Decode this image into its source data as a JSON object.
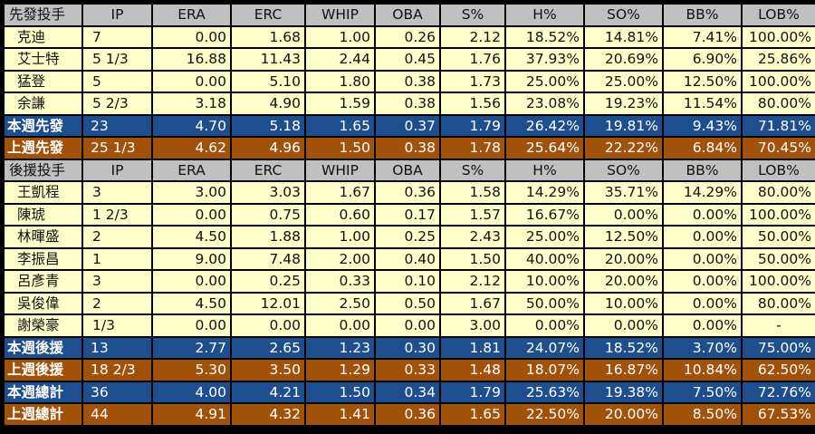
{
  "starters": {
    "header": [
      "先發投手",
      "IP",
      "ERA",
      "ERC",
      "WHIP",
      "OBA",
      "S%",
      "H%",
      "SO%",
      "BB%",
      "LOB%"
    ],
    "rows": [
      [
        "克迪",
        "7",
        "0.00",
        "1.68",
        "1.00",
        "0.26",
        "2.12",
        "18.52%",
        "14.81%",
        "7.41%",
        "100.00%"
      ],
      [
        "艾士特",
        "5 1/3",
        "16.88",
        "11.43",
        "2.44",
        "0.45",
        "1.76",
        "37.93%",
        "20.69%",
        "6.90%",
        "25.86%"
      ],
      [
        "猛登",
        "5",
        "0.00",
        "5.10",
        "1.80",
        "0.38",
        "1.73",
        "25.00%",
        "25.00%",
        "12.50%",
        "100.00%"
      ],
      [
        "余謙",
        "5 2/3",
        "3.18",
        "4.90",
        "1.59",
        "0.38",
        "1.56",
        "23.08%",
        "19.23%",
        "11.54%",
        "80.00%"
      ]
    ],
    "this_week": [
      "本週先發",
      "23",
      "4.70",
      "5.18",
      "1.65",
      "0.37",
      "1.79",
      "26.42%",
      "19.81%",
      "9.43%",
      "71.81%"
    ],
    "last_week": [
      "上週先發",
      "25 1/3",
      "4.62",
      "4.96",
      "1.50",
      "0.38",
      "1.78",
      "25.64%",
      "22.22%",
      "6.84%",
      "70.45%"
    ]
  },
  "relievers": {
    "header": [
      "後援投手",
      "IP",
      "ERA",
      "ERC",
      "WHIP",
      "OBA",
      "S%",
      "H%",
      "SO%",
      "BB%",
      "LOB%"
    ],
    "rows": [
      [
        "王凱程",
        "3",
        "3.00",
        "3.03",
        "1.67",
        "0.36",
        "1.58",
        "14.29%",
        "35.71%",
        "14.29%",
        "80.00%"
      ],
      [
        "陳琥",
        "1 2/3",
        "0.00",
        "0.75",
        "0.60",
        "0.17",
        "1.57",
        "16.67%",
        "0.00%",
        "0.00%",
        "100.00%"
      ],
      [
        "林暉盛",
        "2",
        "4.50",
        "1.88",
        "1.00",
        "0.25",
        "2.43",
        "25.00%",
        "12.50%",
        "0.00%",
        "50.00%"
      ],
      [
        "李振昌",
        "1",
        "9.00",
        "7.48",
        "2.00",
        "0.40",
        "1.50",
        "40.00%",
        "20.00%",
        "0.00%",
        "50.00%"
      ],
      [
        "呂彥青",
        "3",
        "0.00",
        "0.25",
        "0.33",
        "0.10",
        "2.12",
        "10.00%",
        "20.00%",
        "0.00%",
        "100.00%"
      ],
      [
        "吳俊偉",
        "2",
        "4.50",
        "12.01",
        "2.50",
        "0.50",
        "1.67",
        "50.00%",
        "10.00%",
        "0.00%",
        "80.00%"
      ],
      [
        "謝榮豪",
        "1/3",
        "0.00",
        "0.00",
        "0.00",
        "0.00",
        "3.00",
        "0.00%",
        "0.00%",
        "0.00%",
        "-"
      ]
    ],
    "this_week": [
      "本週後援",
      "13",
      "2.77",
      "2.65",
      "1.23",
      "0.30",
      "1.81",
      "24.07%",
      "18.52%",
      "3.70%",
      "75.00%"
    ],
    "last_week": [
      "上週後援",
      "18 2/3",
      "5.30",
      "3.50",
      "1.29",
      "0.33",
      "1.48",
      "18.07%",
      "16.87%",
      "10.84%",
      "62.50%"
    ]
  },
  "totals": {
    "this_week": [
      "本週總計",
      "36",
      "4.00",
      "4.21",
      "1.50",
      "0.34",
      "1.79",
      "25.63%",
      "19.38%",
      "7.50%",
      "72.76%"
    ],
    "last_week": [
      "上週總計",
      "44",
      "4.91",
      "4.32",
      "1.41",
      "0.36",
      "1.65",
      "22.50%",
      "20.00%",
      "8.50%",
      "67.53%"
    ]
  },
  "colors": {
    "header_bg": "#c0c0c0",
    "data_bg": "#ffffcc",
    "this_week_bg": "#1f4e8c",
    "last_week_bg": "#a0520a",
    "border": "#000000"
  }
}
